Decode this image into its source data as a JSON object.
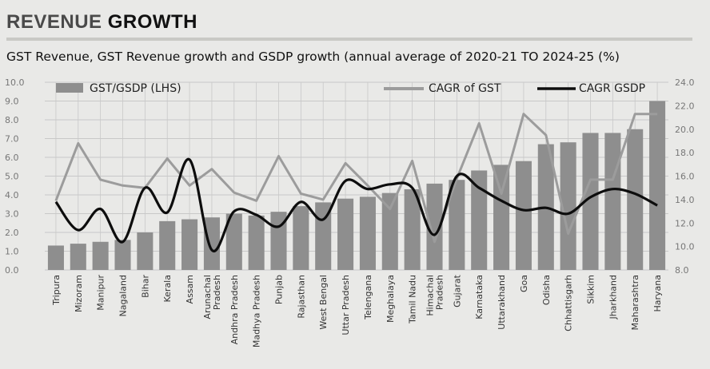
{
  "header": {
    "title_part1": "REVENUE",
    "title_part2": "GROWTH"
  },
  "chart_data": {
    "type": "bar",
    "title": "GST Revenue, GST Revenue growth and GSDP growth (annual average of 2020-21 TO 2024-25 (%)",
    "categories": [
      "Tripura",
      "Mizoram",
      "Manipur",
      "Nagaland",
      "Bihar",
      "Kerala",
      "Assam",
      "Arunachal Pradesh",
      "Andhra Pradesh",
      "Madhya Pradesh",
      "Punjab",
      "Rajasthan",
      "West Bengal",
      "Uttar Pradesh",
      "Telengana",
      "Meghalaya",
      "Tamil Nadu",
      "Himachal Pradesh",
      "Gujarat",
      "Karnataka",
      "Uttarakhand",
      "Goa",
      "Odisha",
      "Chhattisgarh",
      "Sikkim",
      "Jharkhand",
      "Maharashtra",
      "Haryana"
    ],
    "series": [
      {
        "name": "GST/GSDP (LHS)",
        "type": "bar",
        "axis": "left",
        "values": [
          1.3,
          1.4,
          1.5,
          1.6,
          2.0,
          2.6,
          2.7,
          2.8,
          3.0,
          2.9,
          3.1,
          3.4,
          3.6,
          3.8,
          3.9,
          4.1,
          4.3,
          4.6,
          4.8,
          5.3,
          5.6,
          5.8,
          6.7,
          6.8,
          7.3,
          7.3,
          7.5,
          9.0
        ]
      },
      {
        "name": "CAGR of GST",
        "type": "line",
        "axis": "right",
        "values": [
          13.9,
          18.8,
          15.7,
          15.2,
          15.0,
          17.5,
          15.2,
          16.6,
          14.6,
          13.9,
          17.7,
          14.5,
          14.0,
          17.1,
          15.2,
          13.2,
          17.3,
          10.4,
          15.8,
          20.5,
          14.5,
          21.3,
          19.5,
          11.1,
          15.7,
          15.7,
          21.3,
          21.3
        ]
      },
      {
        "name": "CAGR GSDP",
        "type": "line",
        "axis": "right",
        "values": [
          13.8,
          11.4,
          13.2,
          10.4,
          15.0,
          12.9,
          17.4,
          9.7,
          13.0,
          12.7,
          11.7,
          13.8,
          12.3,
          15.6,
          14.9,
          15.3,
          15.0,
          11.0,
          16.0,
          15.0,
          13.9,
          13.1,
          13.3,
          12.8,
          14.2,
          14.9,
          14.5,
          13.5
        ]
      }
    ],
    "ylim_left": [
      0,
      10
    ],
    "yticks_left": [
      "0.0",
      "1.0",
      "2.0",
      "3.0",
      "4.0",
      "5.0",
      "6.0",
      "7.0",
      "8.0",
      "9.0",
      "10.0"
    ],
    "ylim_right": [
      8,
      24
    ],
    "yticks_right": [
      "8.0",
      "10.0",
      "12.0",
      "14.0",
      "16.0",
      "18.0",
      "20.0",
      "22.0",
      "24.0"
    ],
    "grid": true,
    "legend": "top",
    "colors": {
      "bar": "#8e8e8e",
      "gst_line": "#9c9c9c",
      "gsdp_line": "#0d0d0d",
      "grid": "#c8c8c8"
    }
  }
}
